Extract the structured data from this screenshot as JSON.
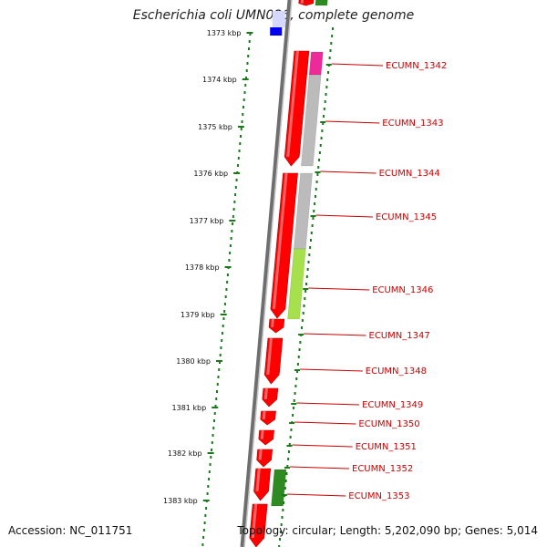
{
  "title": "Escherichia coli UMN026, complete genome",
  "footer": {
    "accession": "Accession: NC_011751",
    "summary": "Topology: circular; Length: 5,202,090 bp; Genes: 5,014"
  },
  "colors": {
    "background": "#ffffff",
    "backbone": "#888888",
    "forward_gene": "#ff0000",
    "cog_gray": "#bbbbbb",
    "cog_magenta": "#ee2a9a",
    "cog_lime": "#a6e04c",
    "cog_green": "#2e8b22",
    "cog_blue": "#0000ee",
    "tick_green": "#1a7a1a",
    "label_red": "#cc0000"
  },
  "kbp_ticks": [
    "1373 kbp",
    "1374 kbp",
    "1375 kbp",
    "1376 kbp",
    "1377 kbp",
    "1378 kbp",
    "1379 kbp",
    "1380 kbp",
    "1381 kbp",
    "1382 kbp",
    "1383 kbp"
  ],
  "gene_labels": [
    "ECUMN_1342",
    "ECUMN_1343",
    "ECUMN_1344",
    "ECUMN_1345",
    "ECUMN_1346",
    "ECUMN_1347",
    "ECUMN_1348",
    "ECUMN_1349",
    "ECUMN_1350",
    "ECUMN_1351",
    "ECUMN_1352",
    "ECUMN_1353"
  ]
}
